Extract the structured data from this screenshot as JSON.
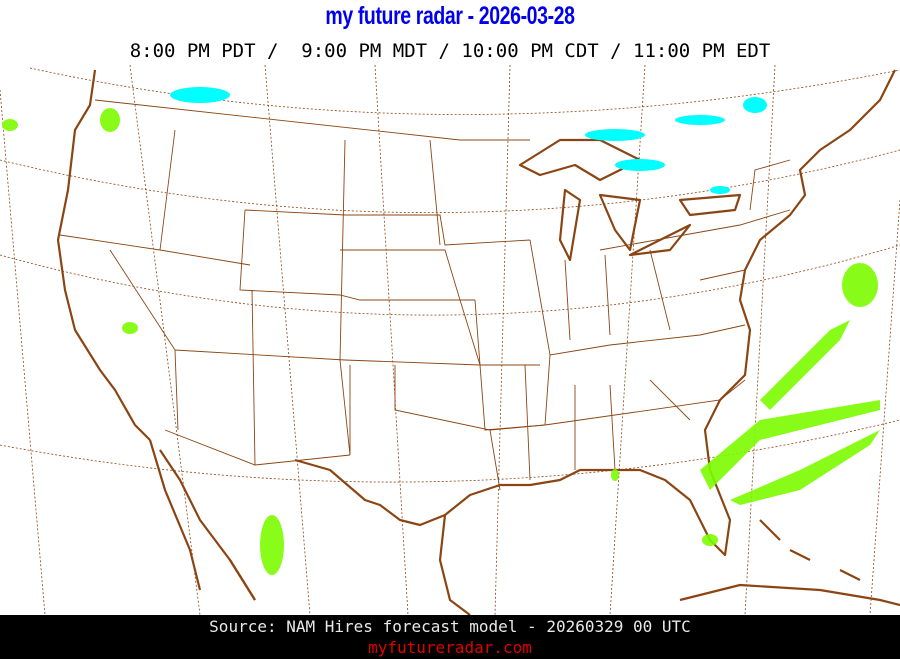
{
  "header": {
    "title": "my future radar - 2026-03-28",
    "times": "8:00 PM PDT /  9:00 PM MDT / 10:00 PM CDT / 11:00 PM EDT"
  },
  "map": {
    "region": "Contiguous United States",
    "layers": [
      "coastlines",
      "state-borders",
      "lat-lon-graticule",
      "precipitation"
    ],
    "colors": {
      "border": "#8b4513",
      "graticule": "#8b4513",
      "snow": "#00ffff",
      "rain_light": "#7cfc00",
      "rain": "#00dd00"
    }
  },
  "footer": {
    "source": "Source: NAM Hires forecast model - 20260329 00 UTC",
    "site": "myfutureradar.com"
  }
}
